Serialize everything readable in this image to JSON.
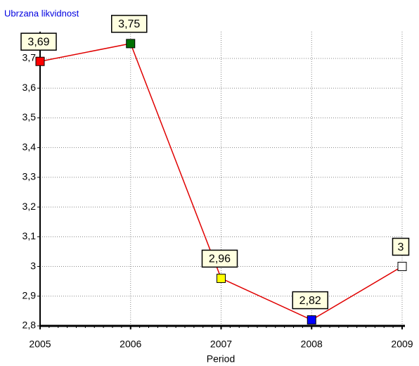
{
  "chart_data": {
    "type": "line",
    "title": "Ubrzana likvidnost",
    "x_label": "Period",
    "categories": [
      "2005",
      "2006",
      "2007",
      "2008",
      "2009"
    ],
    "values": [
      3.69,
      3.75,
      2.96,
      2.82,
      3
    ],
    "value_labels": [
      "3,69",
      "3,75",
      "2,96",
      "2,82",
      "3"
    ],
    "color": "#e00000",
    "marker_colors": [
      "#ff0000",
      "#007000",
      "#ffff00",
      "#0000ff",
      "#ffffff"
    ],
    "ylim": [
      2.8,
      3.79
    ],
    "yticks": [
      {
        "value": 2.8,
        "label": "2,8"
      },
      {
        "value": 2.9,
        "label": "2,9"
      },
      3,
      {
        "value": 3.1,
        "label": "3,1"
      },
      {
        "value": 3.2,
        "label": "3,2"
      },
      {
        "value": 3.3,
        "label": "3,3"
      },
      {
        "value": 3.4,
        "label": "3,4"
      },
      {
        "value": 3.5,
        "label": "3,5"
      },
      {
        "value": 3.6,
        "label": "3,6"
      },
      {
        "value": 3.7,
        "label": "3,7"
      }
    ],
    "grid": true
  }
}
